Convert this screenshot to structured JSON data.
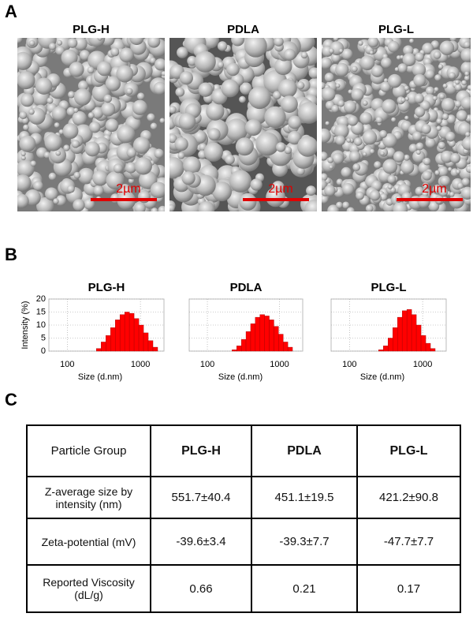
{
  "figure": {
    "labels": [
      "A",
      "B",
      "C"
    ],
    "sem": [
      {
        "title": "PLG-H",
        "scale_bar": "2µm"
      },
      {
        "title": "PDLA",
        "scale_bar": "2µm"
      },
      {
        "title": "PLG-L",
        "scale_bar": "2µm"
      }
    ]
  },
  "chart_data": [
    {
      "type": "histogram",
      "title": "PLG-H",
      "xlabel": "Size (d.nm)",
      "ylabel": "Intensity (%)",
      "color": "#ff0000",
      "log_x": true,
      "grid": true,
      "show_ytick_labels": true,
      "bins": [
        250,
        290,
        336.4,
        390.2,
        452.7,
        525.1,
        609.1,
        706.6,
        819.6,
        950.8,
        1102.9,
        1279.4,
        1484.1,
        1721.6
      ],
      "values": [
        1,
        3.5,
        6,
        9,
        12,
        14,
        15,
        14.5,
        12.5,
        10,
        7,
        4,
        1.5
      ],
      "xlim": [
        56,
        2100
      ],
      "xticks": [
        100,
        1000
      ],
      "ylim": [
        0,
        20
      ],
      "yticks": [
        0,
        5,
        10,
        15,
        20
      ]
    },
    {
      "type": "histogram",
      "title": "PDLA",
      "xlabel": "Size (d.nm)",
      "color": "#ff0000",
      "log_x": true,
      "grid": true,
      "show_ytick_labels": false,
      "bins": [
        220,
        255.2,
        296,
        343.4,
        398.3,
        462.1,
        536,
        621.8,
        721.3,
        836.7,
        970.5,
        1125.8,
        1306,
        1514.9
      ],
      "values": [
        0.5,
        2,
        4.5,
        7.5,
        10.5,
        13,
        14,
        13.5,
        12,
        9.5,
        6.5,
        3.5,
        1.5
      ],
      "xlim": [
        56,
        2100
      ],
      "xticks": [
        100,
        1000
      ],
      "ylim": [
        0,
        20
      ],
      "yticks": [
        0,
        5,
        10,
        15,
        20
      ]
    },
    {
      "type": "histogram",
      "title": "PLG-L",
      "xlabel": "Size (d.nm)",
      "color": "#ff0000",
      "log_x": true,
      "grid": true,
      "show_ytick_labels": false,
      "bins": [
        250,
        290,
        336.4,
        390.2,
        452.7,
        525.1,
        609.1,
        706.6,
        819.6,
        950.8,
        1102.9,
        1279.4,
        1484.1
      ],
      "values": [
        0.5,
        2,
        5,
        9,
        13,
        15.5,
        16,
        14,
        10,
        6,
        3,
        1
      ],
      "xlim": [
        56,
        2100
      ],
      "xticks": [
        100,
        1000
      ],
      "ylim": [
        0,
        20
      ],
      "yticks": [
        0,
        5,
        10,
        15,
        20
      ]
    }
  ],
  "table": {
    "header": [
      "Particle Group",
      "PLG-H",
      "PDLA",
      "PLG-L"
    ],
    "rows": [
      [
        "Z-average size by intensity (nm)",
        "551.7±40.4",
        "451.1±19.5",
        "421.2±90.8"
      ],
      [
        "Zeta-potential (mV)",
        "-39.6±3.4",
        "-39.3±7.7",
        "-47.7±7.7"
      ],
      [
        "Reported Viscosity (dL/g)",
        "0.66",
        "0.21",
        "0.17"
      ]
    ]
  }
}
